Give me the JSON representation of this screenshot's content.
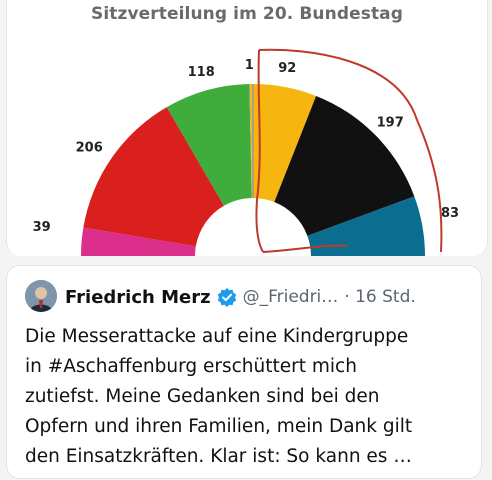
{
  "chart": {
    "title": "Sitzverteilung im 20. Bundestag"
  },
  "chart_data": {
    "type": "pie",
    "title": "Sitzverteilung im 20. Bundestag",
    "layout": "semicircle",
    "slices": [
      {
        "label": "39",
        "value": 39,
        "color": "#dc2f8c"
      },
      {
        "label": "206",
        "value": 206,
        "color": "#d9201e"
      },
      {
        "label": "118",
        "value": 118,
        "color": "#3fad3b"
      },
      {
        "label": "1",
        "value": 1,
        "color": "#a7a7a7"
      },
      {
        "label": "92",
        "value": 92,
        "color": "#f7b50f"
      },
      {
        "label": "197",
        "value": 197,
        "color": "#111111"
      },
      {
        "label": "83",
        "value": 83,
        "color": "#0b6d8f"
      }
    ]
  },
  "tweet": {
    "author_name": "Friedrich Merz",
    "handle": "@_Friedri…",
    "time": "· 16 Std.",
    "text": "Die Messerattacke auf eine Kindergruppe\nin #Aschaffenburg erschüttert mich\nzutiefst. Meine Gedanken sind bei den\nOpfern und ihren Familien, mein Dank gilt\nden Einsatzkräften. Klar ist: So kann es …",
    "verified_icon": "verified-badge-icon",
    "verified_color": "#1d9bf0"
  },
  "annotation": {
    "color": "#c0392b"
  }
}
